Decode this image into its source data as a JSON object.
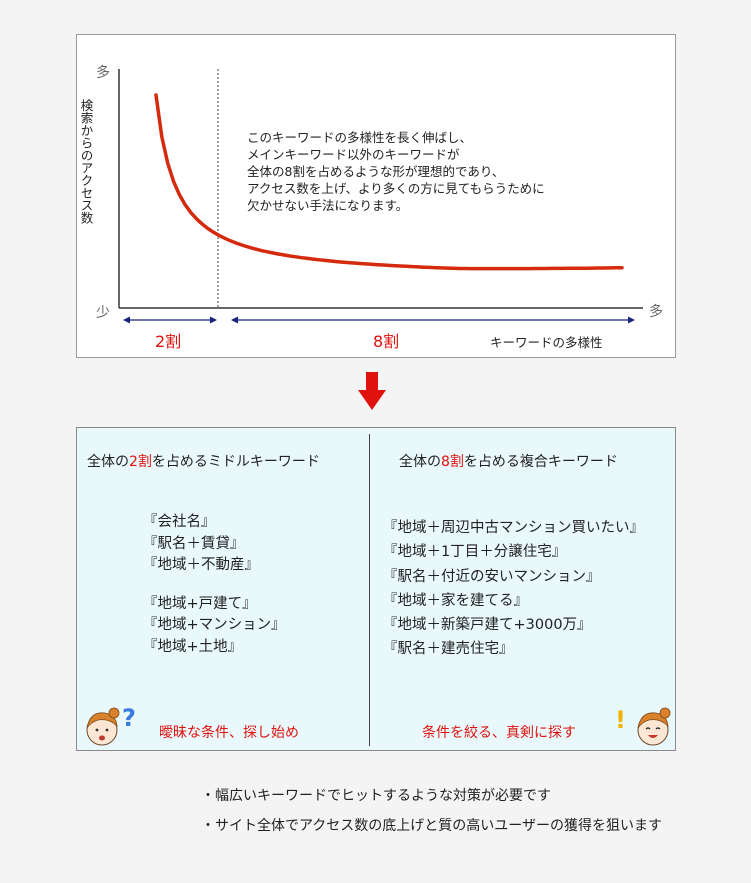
{
  "chart_data": {
    "type": "line",
    "title": "",
    "ylabel": "検索からのアクセス数",
    "xlabel": "キーワードの多様性",
    "y_top_label": "多",
    "y_bottom_label": "少",
    "x_right_label": "多",
    "segment_labels": [
      "2割",
      "8割"
    ],
    "boundary_fraction": 0.2,
    "series": [
      {
        "color": "#d42a0e",
        "shape": "long-tail decreasing curve"
      }
    ],
    "annotation": [
      "このキーワードの多様性を長く伸ばし、",
      "メインキーワード以外のキーワードが",
      "全体の8割を占めるような形が理想的であり、",
      "アクセス数を上げ、より多くの方に見てもらうために",
      "欠かせない手法になります。"
    ]
  },
  "left": {
    "heading": {
      "pre": "全体の",
      "em": "2割",
      "post": "を占めるミドルキーワード"
    },
    "group1": [
      "『会社名』",
      "『駅名＋賃貸』",
      "『地域＋不動産』"
    ],
    "group2": [
      "『地域+戸建て』",
      "『地域+マンション』",
      "『地域+土地』"
    ],
    "caption": "曖昧な条件、探し始め"
  },
  "right": {
    "heading": {
      "pre": "全体の",
      "em": "8割",
      "post": "を占める複合キーワード"
    },
    "items": [
      "『地域＋周辺中古マンション買いたい』",
      "『地域＋1丁目＋分譲住宅』",
      "『駅名＋付近の安いマンション』",
      "『地域＋家を建てる』",
      "『地域＋新築戸建て+3000万』",
      "『駅名＋建売住宅』"
    ],
    "caption": "条件を絞る、真剣に探す"
  },
  "notes": [
    "・幅広いキーワードでヒットするような対策が必要です",
    "・サイト全体でアクセス数の底上げと質の高いユーザーの獲得を狙います"
  ],
  "colors": {
    "accent_red": "#e0120e",
    "arrow_navy": "#1a237e",
    "box_bg": "#e9f8fb"
  }
}
